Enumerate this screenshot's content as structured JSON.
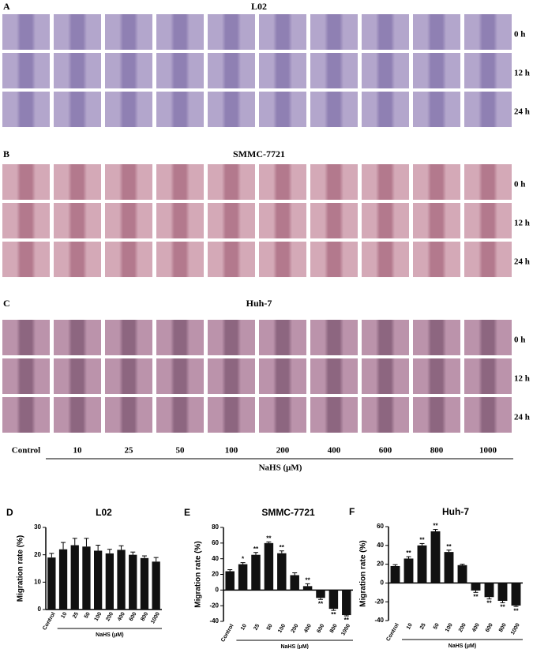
{
  "figure": {
    "panels": [
      {
        "letter": "A",
        "title": "L02"
      },
      {
        "letter": "B",
        "title": "SMMC-7721"
      },
      {
        "letter": "C",
        "title": "Huh-7"
      }
    ],
    "row_labels": [
      "0 h",
      "12 h",
      "24 h"
    ],
    "columns": [
      "Control",
      "10",
      "25",
      "50",
      "100",
      "200",
      "400",
      "600",
      "800",
      "1000"
    ],
    "xlabel": "NaHS (μM)"
  },
  "chart_data": [
    {
      "type": "bar",
      "panel": "D",
      "title": "L02",
      "ylabel": "Migration rate (%)",
      "xlabel": "NaHS (μM)",
      "categories": [
        "Control",
        "10",
        "25",
        "50",
        "100",
        "200",
        "400",
        "600",
        "800",
        "1000"
      ],
      "values": [
        19,
        22,
        23.5,
        23,
        21.5,
        20.5,
        21.8,
        20,
        18.8,
        17.5
      ],
      "errors": [
        1.5,
        2.5,
        2.5,
        3,
        2,
        1.5,
        1.5,
        1,
        0.8,
        1.5
      ],
      "color": "#111111",
      "ylim": [
        0,
        30
      ],
      "yticks": [
        0,
        10,
        20,
        30
      ]
    },
    {
      "type": "bar",
      "panel": "E",
      "title": "SMMC-7721",
      "ylabel": "Migration rate (%)",
      "xlabel": "NaHS (μM)",
      "categories": [
        "Control",
        "10",
        "25",
        "50",
        "100",
        "200",
        "400",
        "600",
        "800",
        "1000"
      ],
      "values": [
        24,
        33,
        45,
        60,
        47,
        19,
        5,
        -10,
        -24,
        -32
      ],
      "errors": [
        2,
        2,
        3,
        1.5,
        3,
        3,
        3,
        2,
        2,
        1
      ],
      "annotations": [
        null,
        "*",
        "**",
        "**",
        "**",
        null,
        "**",
        "**",
        "**",
        "**"
      ],
      "color": "#111111",
      "ylim": [
        -40,
        80
      ],
      "yticks": [
        -40,
        -20,
        0,
        20,
        40,
        60,
        80
      ]
    },
    {
      "type": "bar",
      "panel": "F",
      "title": "Huh-7",
      "ylabel": "Migration rate (%)",
      "xlabel": "NaHS (μM)",
      "categories": [
        "Control",
        "10",
        "25",
        "50",
        "100",
        "200",
        "400",
        "600",
        "800",
        "1000"
      ],
      "values": [
        18,
        26,
        40,
        55,
        33,
        19,
        -8,
        -15,
        -19,
        -24
      ],
      "errors": [
        1.5,
        2,
        2,
        2,
        2,
        1,
        2,
        2,
        2,
        1
      ],
      "annotations": [
        null,
        "**",
        "**",
        "**",
        "**",
        null,
        "**",
        "**",
        "**",
        "**"
      ],
      "color": "#111111",
      "ylim": [
        -40,
        60
      ],
      "yticks": [
        -40,
        -20,
        0,
        20,
        40,
        60
      ]
    }
  ]
}
